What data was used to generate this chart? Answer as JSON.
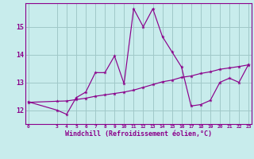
{
  "xlabel": "Windchill (Refroidissement éolien,°C)",
  "bg_color": "#c8ecec",
  "line_color": "#8b008b",
  "grid_color": "#a0c8c8",
  "x_ticks": [
    0,
    3,
    4,
    5,
    6,
    7,
    8,
    9,
    10,
    11,
    12,
    13,
    14,
    15,
    16,
    17,
    18,
    19,
    20,
    21,
    22,
    23
  ],
  "ylim": [
    11.5,
    15.85
  ],
  "xlim": [
    -0.3,
    23.3
  ],
  "y_ticks": [
    12,
    13,
    14,
    15
  ],
  "series1_x": [
    0,
    3,
    4,
    5,
    6,
    7,
    8,
    9,
    10,
    11,
    12,
    13,
    14,
    15,
    16,
    17,
    18,
    19,
    20,
    21,
    22,
    23
  ],
  "series1_y": [
    12.3,
    12.0,
    11.85,
    12.45,
    12.65,
    13.35,
    13.35,
    13.95,
    12.95,
    15.65,
    15.0,
    15.65,
    14.65,
    14.1,
    13.55,
    12.15,
    12.2,
    12.35,
    13.0,
    13.15,
    13.0,
    13.65
  ],
  "series2_x": [
    0,
    3,
    4,
    5,
    6,
    7,
    8,
    9,
    10,
    11,
    12,
    13,
    14,
    15,
    16,
    17,
    18,
    19,
    20,
    21,
    22,
    23
  ],
  "series2_y": [
    12.28,
    12.32,
    12.33,
    12.38,
    12.43,
    12.5,
    12.55,
    12.6,
    12.65,
    12.72,
    12.82,
    12.92,
    13.02,
    13.08,
    13.18,
    13.23,
    13.32,
    13.38,
    13.47,
    13.52,
    13.57,
    13.63
  ]
}
